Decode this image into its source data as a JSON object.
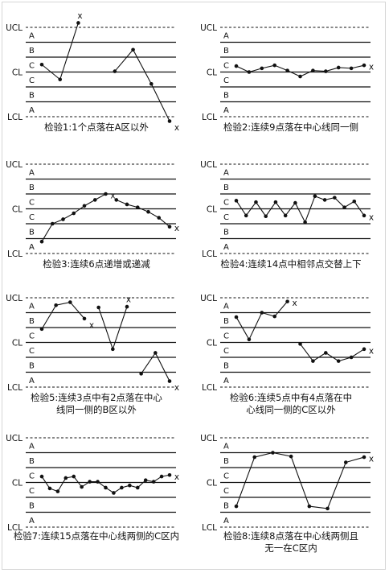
{
  "axis_labels": {
    "ucl": "UCL",
    "cl": "CL",
    "lcl": "LCL"
  },
  "zone_labels": [
    "A",
    "B",
    "C",
    "C",
    "B",
    "A"
  ],
  "violation_marker": "x",
  "charts": [
    {
      "id": "test1",
      "caption_lines": [
        "检验1:1个点落在A区以外"
      ],
      "segments": [
        {
          "points": [
            [
              1,
              0.5
            ],
            [
              2,
              -0.5
            ],
            [
              3,
              3.3
            ]
          ],
          "x_marker_at_end": true
        },
        {
          "points": [
            [
              5,
              0.05
            ],
            [
              6,
              1.5
            ],
            [
              7,
              -0.8
            ],
            [
              8,
              -3.3
            ]
          ],
          "x_marker_at_end": true
        }
      ]
    },
    {
      "id": "test2",
      "caption_lines": [
        "检验2:连续9点落在中心线同一侧"
      ],
      "segments": [
        {
          "points": [
            [
              1,
              0.4
            ],
            [
              2,
              0.0
            ],
            [
              3,
              0.25
            ],
            [
              4,
              0.45
            ],
            [
              5,
              0.1
            ],
            [
              6,
              -0.3
            ],
            [
              7,
              0.1
            ],
            [
              8,
              0.05
            ],
            [
              9,
              0.3
            ],
            [
              10,
              0.25
            ],
            [
              11,
              0.45
            ]
          ],
          "x_marker_at_end": true
        }
      ]
    },
    {
      "id": "test3",
      "caption_lines": [
        "检验3:连续6点递增或递减"
      ],
      "segments": [
        {
          "points": [
            [
              1,
              -2.2
            ],
            [
              2,
              -1.0
            ],
            [
              3,
              -0.7
            ],
            [
              4,
              -0.3
            ],
            [
              5,
              0.2
            ],
            [
              6,
              0.6
            ],
            [
              7,
              1.0
            ]
          ],
          "x_marker_at_end": true
        },
        {
          "points": [
            [
              8,
              0.6
            ],
            [
              9,
              0.3
            ],
            [
              10,
              0.1
            ],
            [
              11,
              -0.2
            ],
            [
              12,
              -0.6
            ],
            [
              13,
              -1.2
            ]
          ],
          "x_marker_at_end": true
        }
      ]
    },
    {
      "id": "test4",
      "caption_lines": [
        "检验4:连续14点中相邻点交替上下"
      ],
      "segments": [
        {
          "points": [
            [
              1,
              0.55
            ],
            [
              2,
              -0.45
            ],
            [
              3,
              0.45
            ],
            [
              4,
              -0.5
            ],
            [
              5,
              0.45
            ],
            [
              6,
              -0.45
            ],
            [
              7,
              0.4
            ],
            [
              8,
              -0.9
            ],
            [
              9,
              0.85
            ],
            [
              10,
              0.6
            ],
            [
              11,
              0.75
            ],
            [
              12,
              0.1
            ],
            [
              13,
              0.5
            ],
            [
              14,
              -0.45
            ]
          ],
          "x_marker_at_end": true
        }
      ]
    },
    {
      "id": "test5",
      "caption_lines": [
        "检验5:连续3点中有2点落在中心",
        "线同一侧的B区以外"
      ],
      "segments": [
        {
          "points": [
            [
              1,
              0.9
            ],
            [
              2,
              2.5
            ],
            [
              3,
              2.7
            ],
            [
              4,
              1.6
            ]
          ],
          "x_marker_at_end": true
        },
        {
          "points": [
            [
              5,
              2.35
            ],
            [
              6,
              -0.45
            ],
            [
              7,
              2.4
            ]
          ],
          "x_marker_at_end": true
        },
        {
          "points": [
            [
              8,
              -2.1
            ],
            [
              9,
              -0.7
            ],
            [
              10,
              -2.6
            ]
          ],
          "x_marker_at_end": true
        }
      ]
    },
    {
      "id": "test6",
      "caption_lines": [
        "检验6:连续5点中有4点落在中",
        "心线同一侧的C区以外"
      ],
      "segments": [
        {
          "points": [
            [
              1,
              1.7
            ],
            [
              2,
              0.2
            ],
            [
              3,
              2.0
            ],
            [
              4,
              1.75
            ],
            [
              5,
              2.75
            ]
          ],
          "x_marker_at_end": true
        },
        {
          "points": [
            [
              6,
              -0.1
            ],
            [
              7,
              -1.25
            ],
            [
              8,
              -0.7
            ],
            [
              9,
              -1.25
            ],
            [
              10,
              -1.0
            ],
            [
              11,
              -0.45
            ]
          ],
          "x_marker_at_end": true
        }
      ]
    },
    {
      "id": "test7",
      "caption_lines": [
        "检验7:连续15点落在中心线两侧的C区内"
      ],
      "segments": [
        {
          "points": [
            [
              1,
              0.4
            ],
            [
              2,
              -0.4
            ],
            [
              3,
              -0.6
            ],
            [
              4,
              0.3
            ],
            [
              5,
              0.4
            ],
            [
              6,
              -0.3
            ],
            [
              7,
              0.05
            ],
            [
              8,
              0.05
            ],
            [
              9,
              -0.35
            ],
            [
              10,
              -0.7
            ],
            [
              11,
              -0.35
            ],
            [
              12,
              -0.2
            ],
            [
              13,
              -0.35
            ],
            [
              14,
              0.15
            ],
            [
              15,
              0.05
            ],
            [
              16,
              0.4
            ],
            [
              17,
              0.5
            ]
          ],
          "x_marker_at_end": true
        }
      ]
    },
    {
      "id": "test8",
      "caption_lines": [
        "检验8:连续8点落在中心线两侧且",
        "无一在C区内"
      ],
      "segments": [
        {
          "points": [
            [
              1,
              -1.6
            ],
            [
              2,
              1.7
            ],
            [
              3,
              2.0
            ],
            [
              4,
              1.75
            ],
            [
              5,
              -1.6
            ],
            [
              6,
              -1.75
            ],
            [
              7,
              1.35
            ],
            [
              8,
              1.7
            ]
          ],
          "x_marker_at_end": true
        }
      ]
    }
  ]
}
